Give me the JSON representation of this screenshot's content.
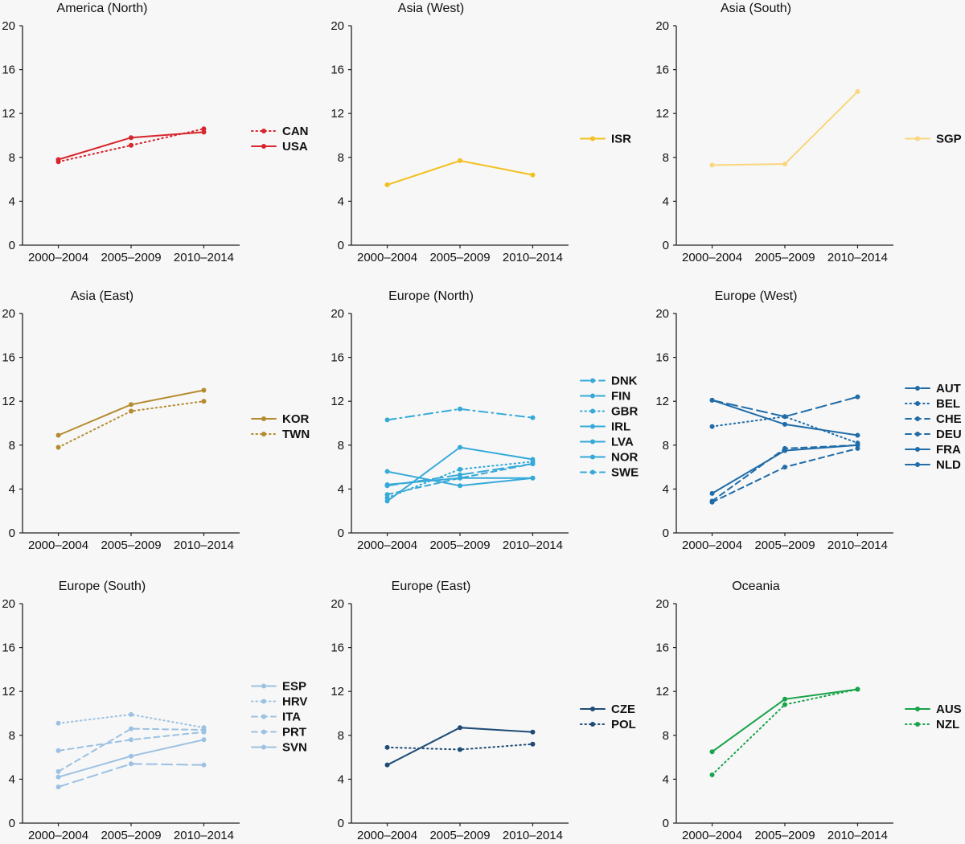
{
  "chart_data": [
    {
      "type": "line",
      "title": "America (North)",
      "categories": [
        "2000–2004",
        "2005–2009",
        "2010–2014"
      ],
      "ylim": [
        0,
        20
      ],
      "yticks": [
        "0",
        "4",
        "8",
        "12",
        "16",
        "20"
      ],
      "series": [
        {
          "name": "CAN",
          "values": [
            7.6,
            9.1,
            10.6
          ],
          "color": "#d7262e",
          "dash": "dotted"
        },
        {
          "name": "USA",
          "values": [
            7.8,
            9.8,
            10.3
          ],
          "color": "#d7262e",
          "dash": "solid"
        }
      ]
    },
    {
      "type": "line",
      "title": "Asia (West)",
      "categories": [
        "2000–2004",
        "2005–2009",
        "2010–2014"
      ],
      "ylim": [
        0,
        20
      ],
      "yticks": [
        "0",
        "4",
        "8",
        "12",
        "16",
        "20"
      ],
      "series": [
        {
          "name": "ISR",
          "values": [
            5.5,
            7.7,
            6.4
          ],
          "color": "#f3bf1e",
          "dash": "solid"
        }
      ]
    },
    {
      "type": "line",
      "title": "Asia (South)",
      "categories": [
        "2000–2004",
        "2005–2009",
        "2010–2014"
      ],
      "ylim": [
        0,
        20
      ],
      "yticks": [
        "0",
        "4",
        "8",
        "12",
        "16",
        "20"
      ],
      "series": [
        {
          "name": "SGP",
          "values": [
            7.3,
            7.4,
            14.0
          ],
          "color": "#f9d77e",
          "dash": "solid"
        }
      ]
    },
    {
      "type": "line",
      "title": "Asia (East)",
      "categories": [
        "2000–2004",
        "2005–2009",
        "2010–2014"
      ],
      "ylim": [
        0,
        20
      ],
      "yticks": [
        "0",
        "4",
        "8",
        "12",
        "16",
        "20"
      ],
      "series": [
        {
          "name": "KOR",
          "values": [
            8.9,
            11.7,
            13.0
          ],
          "color": "#b58b2f",
          "dash": "solid"
        },
        {
          "name": "TWN",
          "values": [
            7.8,
            11.1,
            12.0
          ],
          "color": "#b58b2f",
          "dash": "dotted"
        }
      ]
    },
    {
      "type": "line",
      "title": "Europe (North)",
      "categories": [
        "2000–2004",
        "2005–2009",
        "2010–2014"
      ],
      "ylim": [
        0,
        20
      ],
      "yticks": [
        "0",
        "4",
        "8",
        "12",
        "16",
        "20"
      ],
      "series": [
        {
          "name": "DNK",
          "values": [
            10.3,
            11.3,
            10.5
          ],
          "color": "#35aad9",
          "dash": "dashdot"
        },
        {
          "name": "FIN",
          "values": [
            4.3,
            5.3,
            6.3
          ],
          "color": "#35aad9",
          "dash": "longdash"
        },
        {
          "name": "GBR",
          "values": [
            3.2,
            5.8,
            6.5
          ],
          "color": "#35aad9",
          "dash": "dotted"
        },
        {
          "name": "IRL",
          "values": [
            2.9,
            7.8,
            6.7
          ],
          "color": "#35aad9",
          "dash": "solid"
        },
        {
          "name": "LVA",
          "values": [
            5.6,
            4.3,
            5.0
          ],
          "color": "#35aad9",
          "dash": "solid"
        },
        {
          "name": "NOR",
          "values": [
            4.4,
            5.0,
            5.0
          ],
          "color": "#35aad9",
          "dash": "solid"
        },
        {
          "name": "SWE",
          "values": [
            3.5,
            5.0,
            6.3
          ],
          "color": "#35aad9",
          "dash": "dashed"
        }
      ]
    },
    {
      "type": "line",
      "title": "Europe (West)",
      "categories": [
        "2000–2004",
        "2005–2009",
        "2010–2014"
      ],
      "ylim": [
        0,
        20
      ],
      "yticks": [
        "0",
        "4",
        "8",
        "12",
        "16",
        "20"
      ],
      "series": [
        {
          "name": "AUT",
          "values": [
            12.1,
            10.6,
            12.4
          ],
          "color": "#1f6ca9",
          "dash": "longdash"
        },
        {
          "name": "BEL",
          "values": [
            9.7,
            10.6,
            8.2
          ],
          "color": "#1f6ca9",
          "dash": "dotted"
        },
        {
          "name": "CHE",
          "values": [
            2.9,
            7.7,
            8.0
          ],
          "color": "#1f6ca9",
          "dash": "dashed"
        },
        {
          "name": "DEU",
          "values": [
            2.8,
            6.0,
            7.7
          ],
          "color": "#1f6ca9",
          "dash": "dashed"
        },
        {
          "name": "FRA",
          "values": [
            3.6,
            7.5,
            8.0
          ],
          "color": "#1f6ca9",
          "dash": "solid"
        },
        {
          "name": "NLD",
          "values": [
            12.1,
            9.9,
            8.9
          ],
          "color": "#1f6ca9",
          "dash": "solid"
        }
      ]
    },
    {
      "type": "line",
      "title": "Europe (South)",
      "categories": [
        "2000–2004",
        "2005–2009",
        "2010–2014"
      ],
      "ylim": [
        0,
        20
      ],
      "yticks": [
        "0",
        "4",
        "8",
        "12",
        "16",
        "20"
      ],
      "series": [
        {
          "name": "ESP",
          "values": [
            4.2,
            6.1,
            7.6
          ],
          "color": "#9cc1e2",
          "dash": "solid"
        },
        {
          "name": "HRV",
          "values": [
            9.1,
            9.9,
            8.7
          ],
          "color": "#9cc1e2",
          "dash": "dotted"
        },
        {
          "name": "ITA",
          "values": [
            6.6,
            7.6,
            8.3
          ],
          "color": "#9cc1e2",
          "dash": "dashed"
        },
        {
          "name": "PRT",
          "values": [
            4.7,
            8.6,
            8.5
          ],
          "color": "#9cc1e2",
          "dash": "dashed"
        },
        {
          "name": "SVN",
          "values": [
            3.3,
            5.4,
            5.3
          ],
          "color": "#9cc1e2",
          "dash": "longdash"
        }
      ]
    },
    {
      "type": "line",
      "title": "Europe (East)",
      "categories": [
        "2000–2004",
        "2005–2009",
        "2010–2014"
      ],
      "ylim": [
        0,
        20
      ],
      "yticks": [
        "0",
        "4",
        "8",
        "12",
        "16",
        "20"
      ],
      "series": [
        {
          "name": "CZE",
          "values": [
            5.3,
            8.7,
            8.3
          ],
          "color": "#1e4b75",
          "dash": "solid"
        },
        {
          "name": "POL",
          "values": [
            6.9,
            6.7,
            7.2
          ],
          "color": "#1e4b75",
          "dash": "dotted"
        }
      ]
    },
    {
      "type": "line",
      "title": "Oceania",
      "categories": [
        "2000–2004",
        "2005–2009",
        "2010–2014"
      ],
      "ylim": [
        0,
        20
      ],
      "yticks": [
        "0",
        "4",
        "8",
        "12",
        "16",
        "20"
      ],
      "series": [
        {
          "name": "AUS",
          "values": [
            6.5,
            11.3,
            12.2
          ],
          "color": "#17a34a",
          "dash": "solid"
        },
        {
          "name": "NZL",
          "values": [
            4.4,
            10.8,
            12.2
          ],
          "color": "#17a34a",
          "dash": "dotted"
        }
      ]
    }
  ]
}
